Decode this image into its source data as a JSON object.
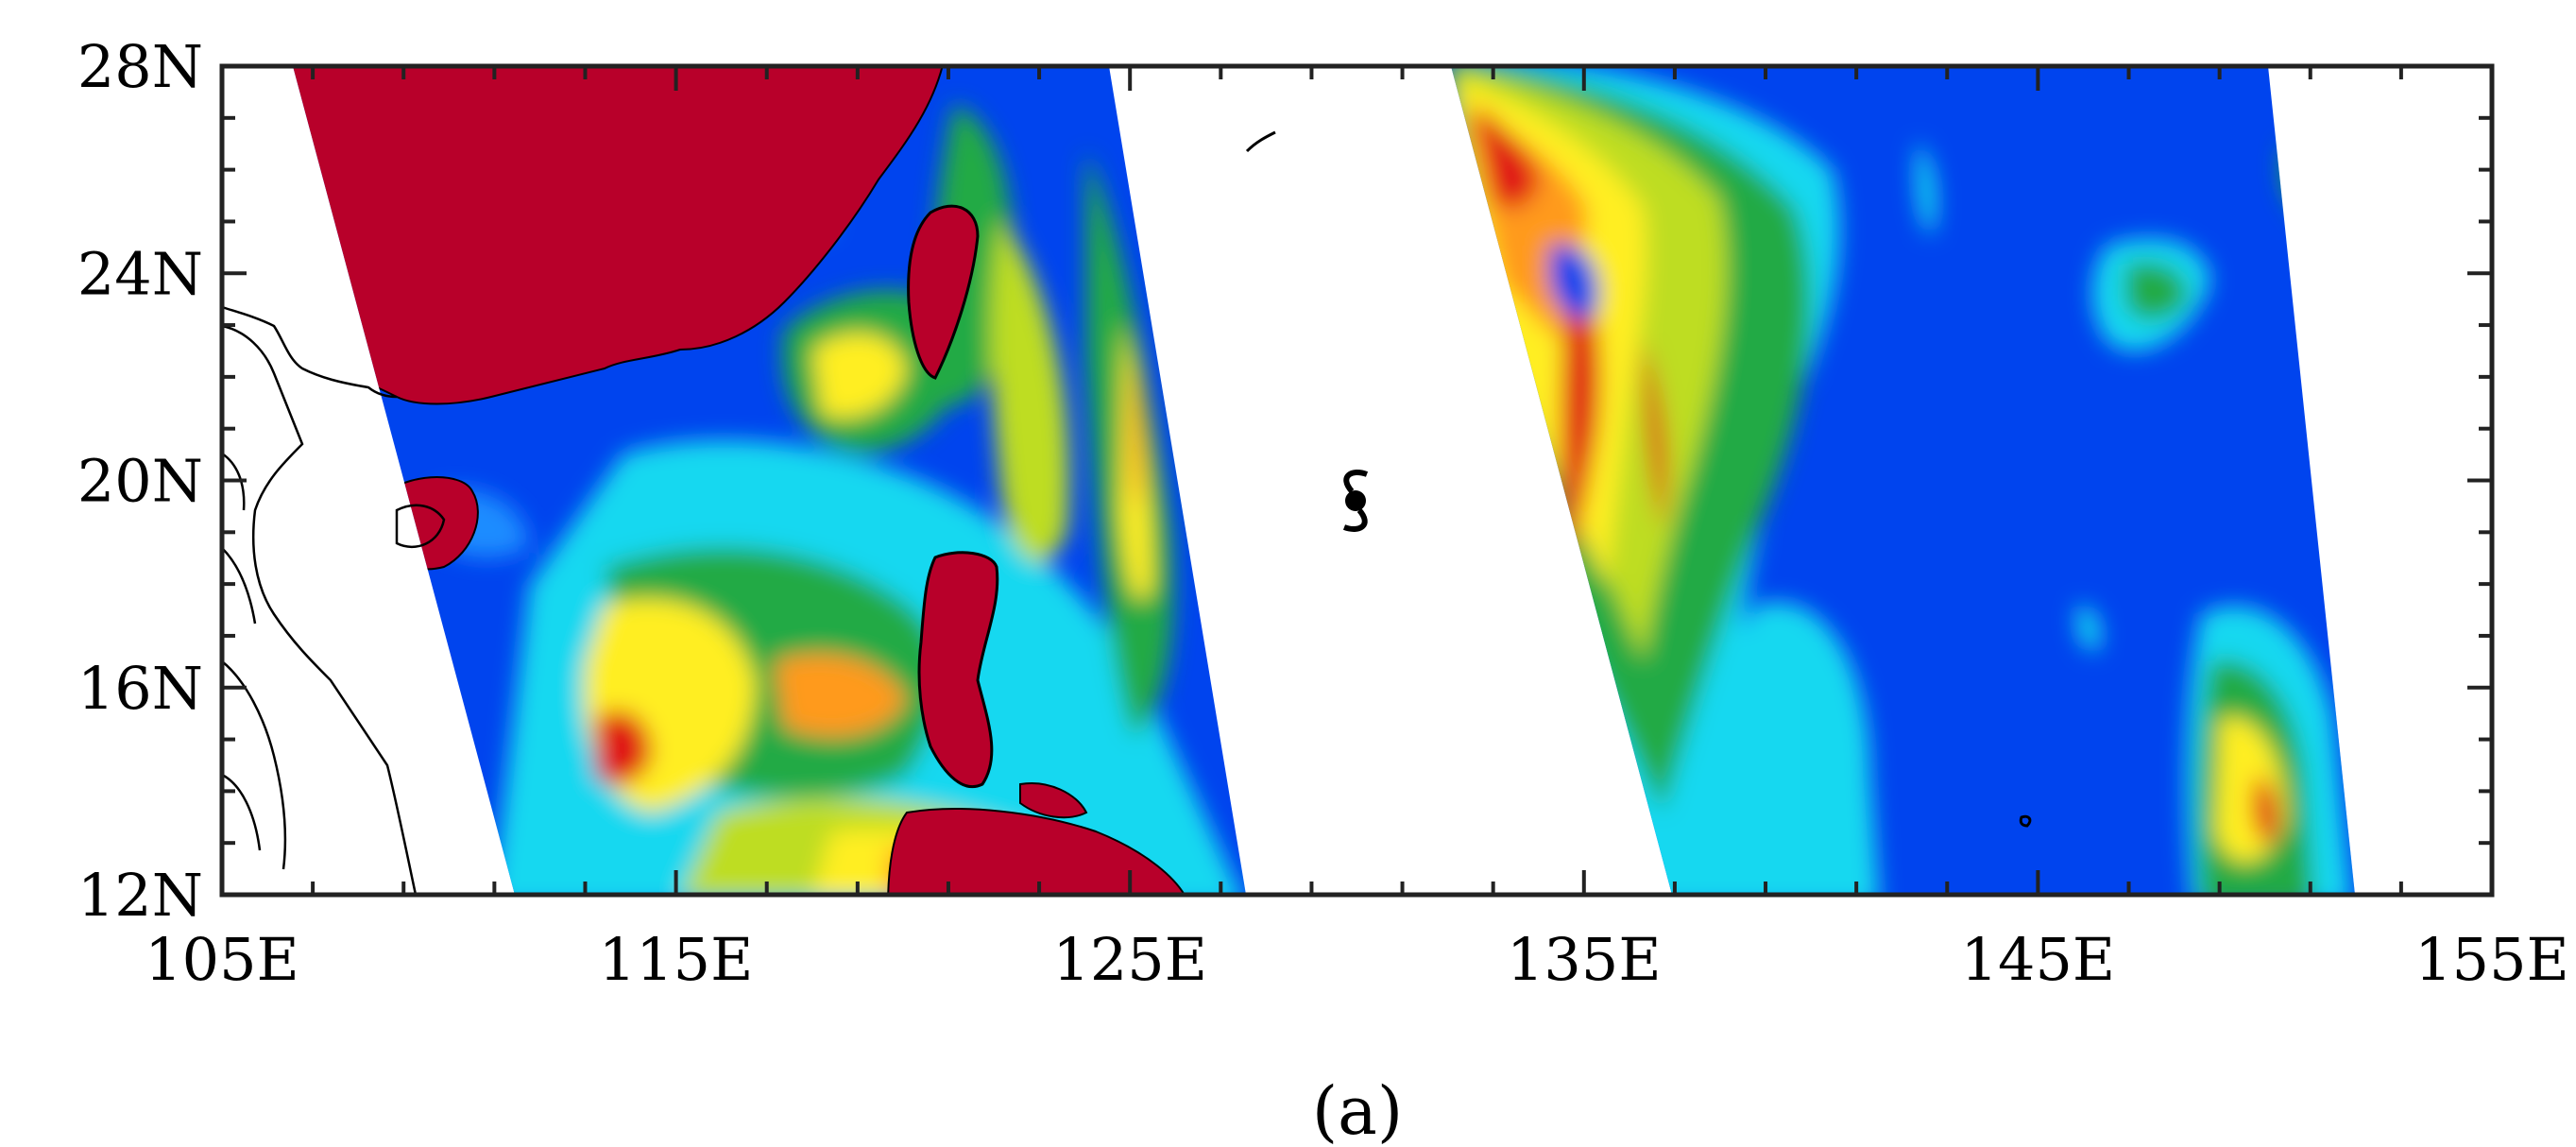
{
  "map": {
    "panel_label": "(a)",
    "lat_range": [
      12,
      28
    ],
    "lon_range": [
      105,
      155
    ],
    "y_ticks": [
      {
        "value": 28,
        "label": "28N"
      },
      {
        "value": 24,
        "label": "24N"
      },
      {
        "value": 20,
        "label": "20N"
      },
      {
        "value": 16,
        "label": "16N"
      },
      {
        "value": 12,
        "label": "12N"
      }
    ],
    "x_ticks": [
      {
        "value": 105,
        "label": "105E"
      },
      {
        "value": 115,
        "label": "115E"
      },
      {
        "value": 125,
        "label": "125E"
      },
      {
        "value": 135,
        "label": "135E"
      },
      {
        "value": 145,
        "label": "145E"
      },
      {
        "value": 155,
        "label": "155E"
      }
    ],
    "typhoon_symbol": {
      "lon": 130.0,
      "lat": 19.5,
      "icon": "typhoon-symbol-icon"
    },
    "colors": {
      "land_masked": "#b8002a",
      "ocean_low": "#0044ee",
      "blue_mid": "#1a8cff",
      "cyan": "#14d8f0",
      "green": "#22aa44",
      "yellow_green": "#bedd22",
      "yellow": "#ffee22",
      "orange": "#ff9a1e",
      "red": "#e01818"
    }
  }
}
